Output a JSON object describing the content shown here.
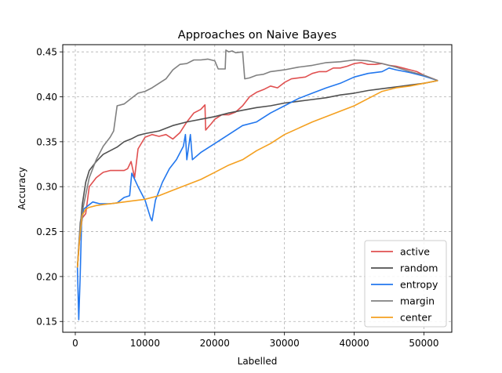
{
  "chart_data": {
    "type": "line",
    "title": "Approaches on Naive Bayes",
    "xlabel": "Labelled",
    "ylabel": "Accuracy",
    "xlim": [
      -1800,
      54000
    ],
    "ylim": [
      0.138,
      0.458
    ],
    "xticks": [
      0,
      10000,
      20000,
      30000,
      40000,
      50000
    ],
    "xtick_labels": [
      "0",
      "10000",
      "20000",
      "30000",
      "40000",
      "50000"
    ],
    "yticks": [
      0.15,
      0.2,
      0.25,
      0.3,
      0.35,
      0.4,
      0.45
    ],
    "ytick_labels": [
      "0.15",
      "0.20",
      "0.25",
      "0.30",
      "0.35",
      "0.40",
      "0.45"
    ],
    "grid": true,
    "legend_position": "lower-right",
    "series": [
      {
        "name": "active",
        "color": "#e05050",
        "points": [
          [
            300,
            0.21
          ],
          [
            600,
            0.24
          ],
          [
            1000,
            0.265
          ],
          [
            1500,
            0.27
          ],
          [
            2000,
            0.3
          ],
          [
            3000,
            0.31
          ],
          [
            4000,
            0.316
          ],
          [
            5000,
            0.318
          ],
          [
            6000,
            0.318
          ],
          [
            7000,
            0.318
          ],
          [
            7500,
            0.32
          ],
          [
            8000,
            0.328
          ],
          [
            8500,
            0.31
          ],
          [
            9000,
            0.342
          ],
          [
            10000,
            0.355
          ],
          [
            11000,
            0.358
          ],
          [
            12000,
            0.356
          ],
          [
            13000,
            0.358
          ],
          [
            14000,
            0.353
          ],
          [
            15000,
            0.36
          ],
          [
            16000,
            0.372
          ],
          [
            17000,
            0.382
          ],
          [
            18000,
            0.386
          ],
          [
            18600,
            0.391
          ],
          [
            18700,
            0.363
          ],
          [
            19500,
            0.37
          ],
          [
            20000,
            0.375
          ],
          [
            21000,
            0.38
          ],
          [
            22000,
            0.38
          ],
          [
            23000,
            0.383
          ],
          [
            24000,
            0.39
          ],
          [
            25000,
            0.4
          ],
          [
            26000,
            0.405
          ],
          [
            27000,
            0.408
          ],
          [
            28000,
            0.412
          ],
          [
            29000,
            0.41
          ],
          [
            30000,
            0.416
          ],
          [
            31000,
            0.42
          ],
          [
            32000,
            0.421
          ],
          [
            33000,
            0.422
          ],
          [
            34000,
            0.426
          ],
          [
            35000,
            0.428
          ],
          [
            36000,
            0.428
          ],
          [
            37000,
            0.432
          ],
          [
            38000,
            0.432
          ],
          [
            39000,
            0.434
          ],
          [
            40000,
            0.437
          ],
          [
            41000,
            0.438
          ],
          [
            42000,
            0.436
          ],
          [
            43000,
            0.436
          ],
          [
            44000,
            0.437
          ],
          [
            45000,
            0.435
          ],
          [
            46000,
            0.434
          ],
          [
            47000,
            0.432
          ],
          [
            48000,
            0.43
          ],
          [
            49000,
            0.428
          ],
          [
            50000,
            0.424
          ],
          [
            51000,
            0.421
          ],
          [
            52000,
            0.418
          ]
        ]
      },
      {
        "name": "random",
        "color": "#505050",
        "points": [
          [
            300,
            0.21
          ],
          [
            600,
            0.245
          ],
          [
            1000,
            0.28
          ],
          [
            1500,
            0.305
          ],
          [
            2000,
            0.318
          ],
          [
            3000,
            0.328
          ],
          [
            4000,
            0.336
          ],
          [
            5000,
            0.34
          ],
          [
            6000,
            0.344
          ],
          [
            7000,
            0.35
          ],
          [
            8000,
            0.353
          ],
          [
            9000,
            0.357
          ],
          [
            10000,
            0.359
          ],
          [
            12000,
            0.362
          ],
          [
            14000,
            0.368
          ],
          [
            16000,
            0.372
          ],
          [
            18000,
            0.375
          ],
          [
            20000,
            0.378
          ],
          [
            22000,
            0.382
          ],
          [
            24000,
            0.385
          ],
          [
            26000,
            0.388
          ],
          [
            28000,
            0.39
          ],
          [
            30000,
            0.393
          ],
          [
            32000,
            0.395
          ],
          [
            34000,
            0.397
          ],
          [
            36000,
            0.399
          ],
          [
            38000,
            0.402
          ],
          [
            40000,
            0.404
          ],
          [
            42000,
            0.407
          ],
          [
            44000,
            0.409
          ],
          [
            46000,
            0.411
          ],
          [
            48000,
            0.413
          ],
          [
            50000,
            0.415
          ],
          [
            52000,
            0.418
          ]
        ]
      },
      {
        "name": "entropy",
        "color": "#2277ee",
        "points": [
          [
            300,
            0.21
          ],
          [
            500,
            0.152
          ],
          [
            700,
            0.2
          ],
          [
            900,
            0.26
          ],
          [
            1200,
            0.275
          ],
          [
            1700,
            0.278
          ],
          [
            2500,
            0.283
          ],
          [
            3500,
            0.281
          ],
          [
            5000,
            0.281
          ],
          [
            6000,
            0.282
          ],
          [
            7000,
            0.288
          ],
          [
            7800,
            0.29
          ],
          [
            8100,
            0.315
          ],
          [
            9000,
            0.3
          ],
          [
            10000,
            0.285
          ],
          [
            10800,
            0.265
          ],
          [
            11000,
            0.262
          ],
          [
            11500,
            0.285
          ],
          [
            12500,
            0.305
          ],
          [
            13500,
            0.32
          ],
          [
            14500,
            0.33
          ],
          [
            15500,
            0.345
          ],
          [
            15800,
            0.358
          ],
          [
            16000,
            0.33
          ],
          [
            16500,
            0.358
          ],
          [
            16800,
            0.33
          ],
          [
            18000,
            0.338
          ],
          [
            20000,
            0.348
          ],
          [
            22000,
            0.358
          ],
          [
            24000,
            0.368
          ],
          [
            26000,
            0.372
          ],
          [
            28000,
            0.382
          ],
          [
            30000,
            0.39
          ],
          [
            32000,
            0.398
          ],
          [
            34000,
            0.404
          ],
          [
            36000,
            0.41
          ],
          [
            38000,
            0.415
          ],
          [
            40000,
            0.422
          ],
          [
            42000,
            0.426
          ],
          [
            44000,
            0.428
          ],
          [
            45000,
            0.432
          ],
          [
            46000,
            0.43
          ],
          [
            48000,
            0.427
          ],
          [
            50000,
            0.423
          ],
          [
            52000,
            0.418
          ]
        ]
      },
      {
        "name": "margin",
        "color": "#808080",
        "points": [
          [
            300,
            0.21
          ],
          [
            700,
            0.26
          ],
          [
            1200,
            0.28
          ],
          [
            2000,
            0.31
          ],
          [
            3000,
            0.33
          ],
          [
            4000,
            0.345
          ],
          [
            5000,
            0.355
          ],
          [
            5500,
            0.362
          ],
          [
            6000,
            0.39
          ],
          [
            7000,
            0.392
          ],
          [
            8000,
            0.398
          ],
          [
            9000,
            0.404
          ],
          [
            10000,
            0.406
          ],
          [
            11000,
            0.41
          ],
          [
            12000,
            0.415
          ],
          [
            13000,
            0.42
          ],
          [
            14000,
            0.43
          ],
          [
            15000,
            0.436
          ],
          [
            16000,
            0.437
          ],
          [
            17000,
            0.441
          ],
          [
            18000,
            0.441
          ],
          [
            19000,
            0.442
          ],
          [
            20000,
            0.44
          ],
          [
            20500,
            0.431
          ],
          [
            21500,
            0.431
          ],
          [
            21600,
            0.452
          ],
          [
            22000,
            0.45
          ],
          [
            22500,
            0.451
          ],
          [
            23000,
            0.449
          ],
          [
            24000,
            0.45
          ],
          [
            24300,
            0.42
          ],
          [
            25000,
            0.421
          ],
          [
            26000,
            0.424
          ],
          [
            27000,
            0.425
          ],
          [
            28000,
            0.428
          ],
          [
            30000,
            0.43
          ],
          [
            32000,
            0.433
          ],
          [
            34000,
            0.435
          ],
          [
            36000,
            0.438
          ],
          [
            38000,
            0.439
          ],
          [
            40000,
            0.441
          ],
          [
            42000,
            0.44
          ],
          [
            44000,
            0.437
          ],
          [
            46000,
            0.433
          ],
          [
            48000,
            0.428
          ],
          [
            50000,
            0.424
          ],
          [
            52000,
            0.418
          ]
        ]
      },
      {
        "name": "center",
        "color": "#f4a020",
        "points": [
          [
            300,
            0.21
          ],
          [
            600,
            0.24
          ],
          [
            1000,
            0.268
          ],
          [
            1500,
            0.275
          ],
          [
            2000,
            0.277
          ],
          [
            3000,
            0.279
          ],
          [
            4000,
            0.28
          ],
          [
            6000,
            0.282
          ],
          [
            8000,
            0.284
          ],
          [
            10000,
            0.286
          ],
          [
            12000,
            0.29
          ],
          [
            14000,
            0.296
          ],
          [
            16000,
            0.302
          ],
          [
            18000,
            0.308
          ],
          [
            20000,
            0.316
          ],
          [
            22000,
            0.324
          ],
          [
            24000,
            0.33
          ],
          [
            26000,
            0.34
          ],
          [
            28000,
            0.348
          ],
          [
            30000,
            0.358
          ],
          [
            32000,
            0.365
          ],
          [
            34000,
            0.372
          ],
          [
            36000,
            0.378
          ],
          [
            38000,
            0.384
          ],
          [
            40000,
            0.39
          ],
          [
            42000,
            0.398
          ],
          [
            44000,
            0.406
          ],
          [
            46000,
            0.41
          ],
          [
            48000,
            0.412
          ],
          [
            50000,
            0.415
          ],
          [
            52000,
            0.418
          ]
        ]
      }
    ]
  }
}
